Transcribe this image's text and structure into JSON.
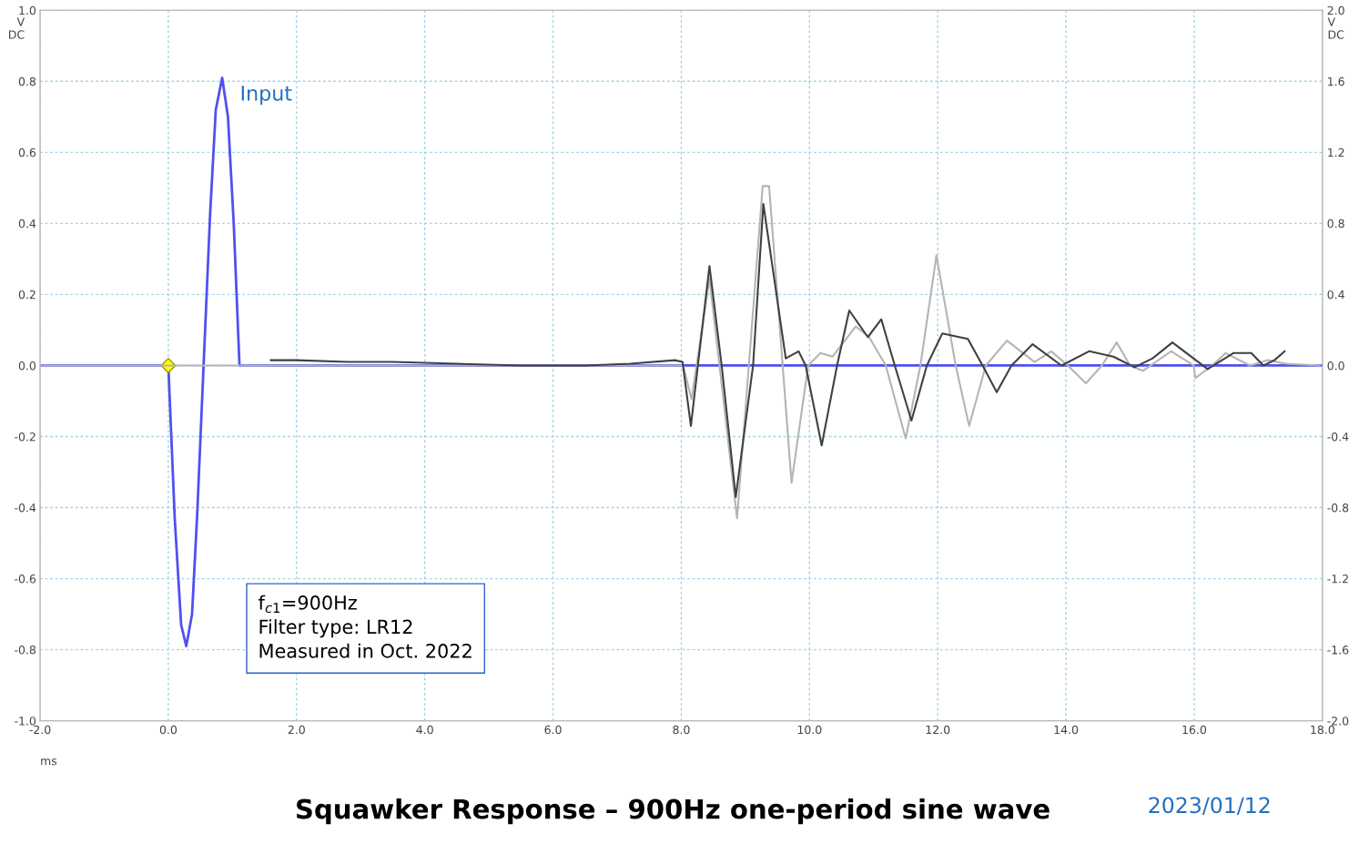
{
  "chart_data": {
    "type": "line",
    "title": "Squawker Response – 900Hz one-period sine wave",
    "xlabel": "ms",
    "ylabel": "V\nDC",
    "y2label": "V\nDC",
    "xlim": [
      -2.0,
      18.0
    ],
    "xticks": [
      {
        "value": -2,
        "label": "-2.0"
      },
      {
        "value": 0,
        "label": "0.0"
      },
      {
        "value": 2,
        "label": "2.0"
      },
      {
        "value": 4,
        "label": "4.0"
      },
      {
        "value": 6,
        "label": "6.0"
      },
      {
        "value": 8,
        "label": "8.0"
      },
      {
        "value": 10,
        "label": "10.0"
      },
      {
        "value": 12,
        "label": "12.0"
      },
      {
        "value": 14,
        "label": "14.0"
      },
      {
        "value": 16,
        "label": "16.0"
      },
      {
        "value": 18,
        "label": "18.0"
      }
    ],
    "ylim": [
      -1.0,
      1.0
    ],
    "yticks": [
      {
        "value": -1,
        "label": "-1.0"
      },
      {
        "value": -0.8,
        "label": "-0.8"
      },
      {
        "value": -0.6,
        "label": "-0.6"
      },
      {
        "value": -0.4,
        "label": "-0.4"
      },
      {
        "value": -0.2,
        "label": "-0.2"
      },
      {
        "value": 0,
        "label": "0.0"
      },
      {
        "value": 0.2,
        "label": "0.2"
      },
      {
        "value": 0.4,
        "label": "0.4"
      },
      {
        "value": 0.6,
        "label": "0.6"
      },
      {
        "value": 0.8,
        "label": "0.8"
      },
      {
        "value": 1,
        "label": "1.0"
      }
    ],
    "y2lim": [
      -2.0,
      2.0
    ],
    "y2ticks": [
      {
        "value": -2,
        "label": "-2.0"
      },
      {
        "value": -1.6,
        "label": "-1.6"
      },
      {
        "value": -1.2,
        "label": "-1.2"
      },
      {
        "value": -0.8,
        "label": "-0.8"
      },
      {
        "value": -0.4,
        "label": "-0.4"
      },
      {
        "value": 0,
        "label": "0.0"
      },
      {
        "value": 0.4,
        "label": "0.4"
      },
      {
        "value": 0.8,
        "label": "0.8"
      },
      {
        "value": 1.2,
        "label": "1.2"
      },
      {
        "value": 1.6,
        "label": "1.6"
      },
      {
        "value": 2,
        "label": "2.0"
      }
    ],
    "grid": true,
    "legend": false,
    "marker": "none",
    "line_style": "solid",
    "series": [
      {
        "color": "#b4b4b4",
        "axis": "y2",
        "x": [
          -2.0,
          7.9,
          8.03,
          8.16,
          8.44,
          8.87,
          9.27,
          9.37,
          9.72,
          9.98,
          10.17,
          10.36,
          10.72,
          10.93,
          11.19,
          11.5,
          11.73,
          11.98,
          12.28,
          12.49,
          12.75,
          13.08,
          13.51,
          13.77,
          14.03,
          14.31,
          14.56,
          14.79,
          15.0,
          15.2,
          15.64,
          15.99,
          16.02,
          16.28,
          16.49,
          16.87,
          17.15,
          17.43,
          17.96
        ],
        "values": [
          0.0,
          0.0,
          0.0,
          -0.19,
          0.49,
          -0.86,
          1.01,
          1.01,
          -0.66,
          0.0,
          0.07,
          0.05,
          0.22,
          0.16,
          0.0,
          -0.41,
          0.0,
          0.62,
          0.0,
          -0.34,
          0.0,
          0.14,
          0.02,
          0.08,
          0.0,
          -0.1,
          0.0,
          0.13,
          0.0,
          -0.03,
          0.08,
          0.0,
          -0.07,
          0.0,
          0.07,
          0.0,
          0.03,
          0.01,
          0.0
        ]
      },
      {
        "color": "#404040",
        "axis": "y2",
        "x": [
          1.6,
          2.0,
          2.8,
          3.5,
          4.5,
          5.5,
          6.5,
          7.2,
          7.9,
          8.02,
          8.15,
          8.44,
          8.63,
          8.85,
          9.12,
          9.28,
          9.63,
          9.83,
          9.94,
          10.19,
          10.43,
          10.62,
          10.91,
          11.12,
          11.33,
          11.59,
          11.83,
          12.07,
          12.47,
          12.7,
          12.92,
          13.15,
          13.48,
          13.93,
          14.36,
          14.74,
          15.07,
          15.35,
          15.66,
          16.21,
          16.61,
          16.89,
          17.08,
          17.25,
          17.41
        ],
        "values": [
          0.03,
          0.03,
          0.02,
          0.02,
          0.01,
          0.0,
          0.0,
          0.01,
          0.03,
          0.02,
          -0.34,
          0.56,
          0.0,
          -0.74,
          0.0,
          0.91,
          0.04,
          0.08,
          0.0,
          -0.45,
          0.0,
          0.31,
          0.16,
          0.26,
          0.0,
          -0.31,
          0.0,
          0.18,
          0.15,
          0.0,
          -0.15,
          0.0,
          0.12,
          0.0,
          0.08,
          0.05,
          -0.01,
          0.04,
          0.13,
          -0.02,
          0.07,
          0.07,
          0.0,
          0.03,
          0.08
        ]
      },
      {
        "name": "Input",
        "color": "#5050f0",
        "x": [
          -2.0,
          0.0,
          0.1,
          0.2,
          0.28,
          0.37,
          0.45,
          0.55,
          0.65,
          0.74,
          0.84,
          0.93,
          1.02,
          1.11,
          18.0
        ],
        "values": [
          0.0,
          0.0,
          -0.43,
          -0.73,
          -0.79,
          -0.7,
          -0.42,
          0.0,
          0.42,
          0.72,
          0.81,
          0.7,
          0.4,
          0.0,
          0.0
        ]
      }
    ],
    "annotations": [
      "f$_{c1}$=900Hz\nFilter type: LR12\nMeasured in Oct. 2022",
      "2023/01/12"
    ]
  }
}
